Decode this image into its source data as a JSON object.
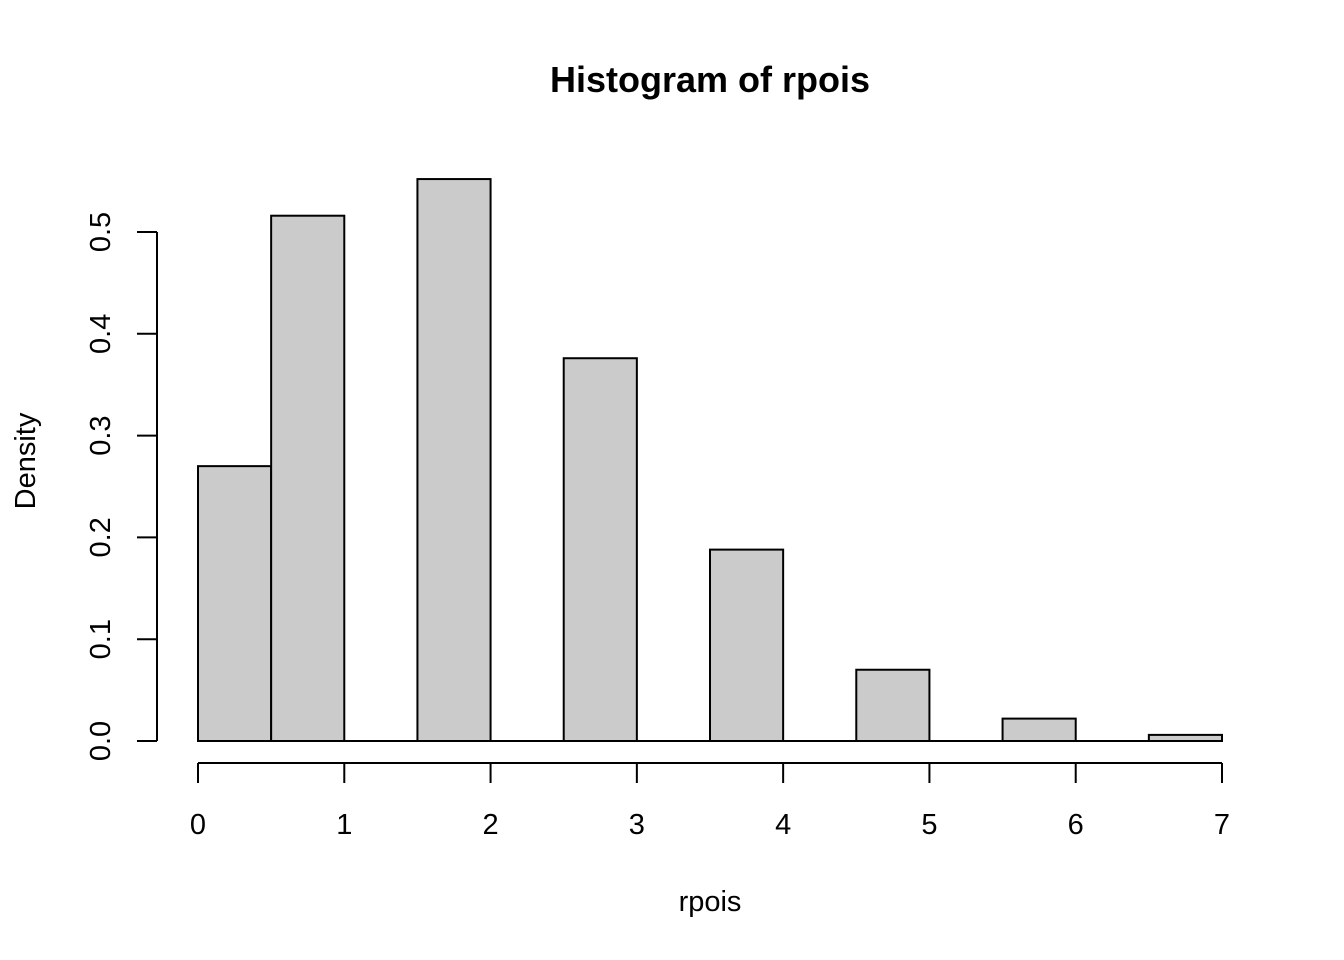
{
  "chart_data": {
    "type": "bar",
    "title": "Histogram of rpois",
    "xlabel": "rpois",
    "ylabel": "Density",
    "xlim": [
      0,
      7
    ],
    "ylim": [
      0,
      0.55
    ],
    "x_ticks": [
      0,
      1,
      2,
      3,
      4,
      5,
      6,
      7
    ],
    "x_tick_labels": [
      "0",
      "1",
      "2",
      "3",
      "4",
      "5",
      "6",
      "7"
    ],
    "y_ticks": [
      0.0,
      0.1,
      0.2,
      0.3,
      0.4,
      0.5
    ],
    "y_tick_labels": [
      "0.0",
      "0.1",
      "0.2",
      "0.3",
      "0.4",
      "0.5"
    ],
    "bins": [
      {
        "start": 0.0,
        "end": 0.5,
        "density": 0.27
      },
      {
        "start": 0.5,
        "end": 1.0,
        "density": 0.516
      },
      {
        "start": 1.5,
        "end": 2.0,
        "density": 0.552
      },
      {
        "start": 2.5,
        "end": 3.0,
        "density": 0.376
      },
      {
        "start": 3.5,
        "end": 4.0,
        "density": 0.188
      },
      {
        "start": 4.5,
        "end": 5.0,
        "density": 0.07
      },
      {
        "start": 5.5,
        "end": 6.0,
        "density": 0.022
      },
      {
        "start": 6.5,
        "end": 7.0,
        "density": 0.006
      }
    ],
    "bar_fill": "#cbcbcb",
    "bar_stroke": "#000000",
    "grid": false,
    "legend": false
  }
}
